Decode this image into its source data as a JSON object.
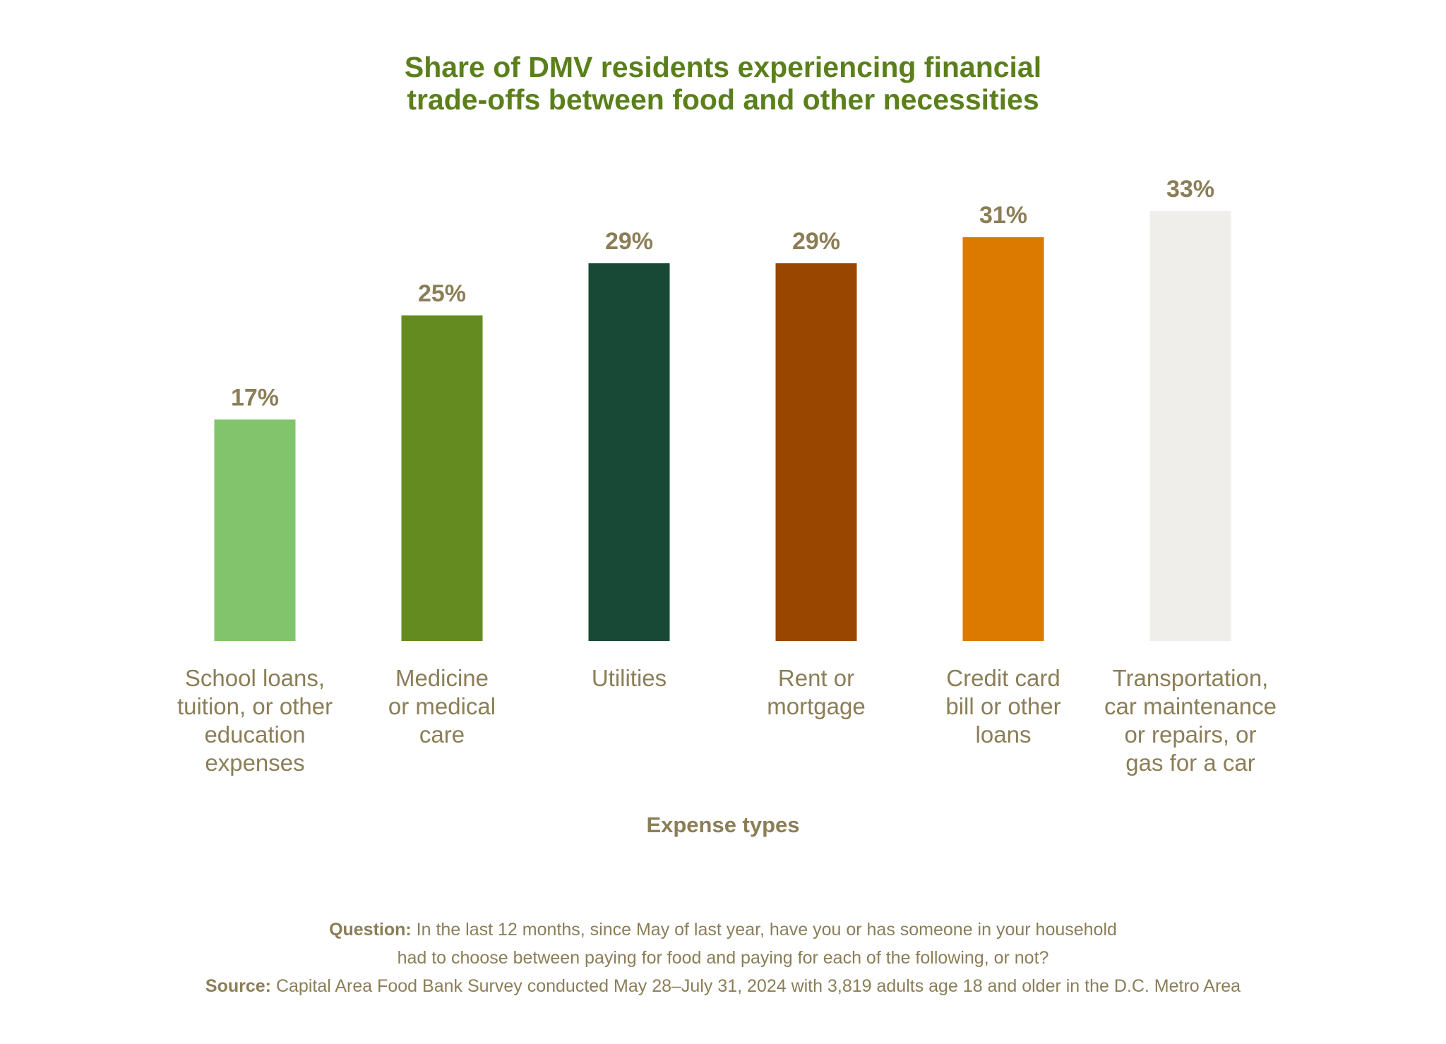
{
  "chart_data": {
    "type": "bar",
    "title_lines": [
      "Share of DMV residents experiencing financial",
      "trade-offs between food and other necessities"
    ],
    "xlabel": "Expense types",
    "ylabel": "",
    "ylim": [
      0,
      35
    ],
    "grid": false,
    "categories": [
      [
        "School loans,",
        "tuition, or other",
        "education",
        "expenses"
      ],
      [
        "Medicine",
        "or medical",
        "care"
      ],
      [
        "Utilities"
      ],
      [
        "Rent or",
        "mortgage"
      ],
      [
        "Credit card",
        "bill or other",
        "loans"
      ],
      [
        "Transportation,",
        "car maintenance",
        "or repairs, or",
        "gas for a car"
      ]
    ],
    "values": [
      17,
      25,
      29,
      29,
      31,
      33
    ],
    "value_labels": [
      "17%",
      "25%",
      "29%",
      "29%",
      "31%",
      "33%"
    ],
    "colors": [
      "#82c46c",
      "#648b1f",
      "#184936",
      "#984600",
      "#dc7a00",
      "#efeeea"
    ]
  },
  "footnote": {
    "question_label": "Question:",
    "question_line1": " In the last 12 months, since May of last year, have you or has someone in your household",
    "question_line2": "had to choose between paying for food and paying for each of the following, or not?",
    "source_label": "Source:",
    "source_text": " Capital Area Food Bank Survey conducted May 28–July 31, 2024 with 3,819 adults age 18 and older in the D.C. Metro Area"
  }
}
